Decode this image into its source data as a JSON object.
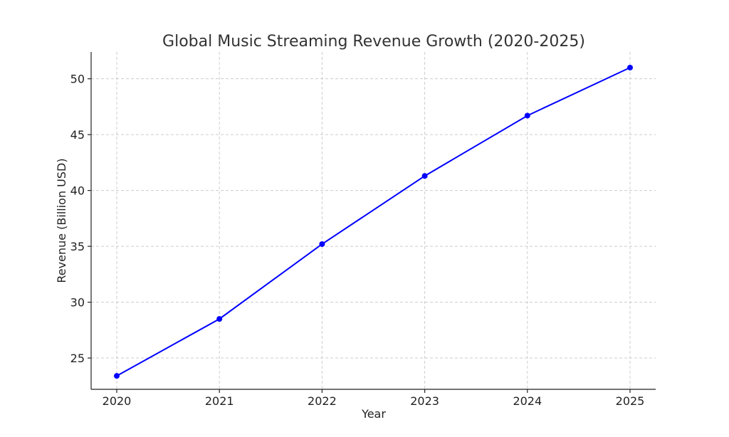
{
  "chart_data": {
    "type": "line",
    "title": "Global Music Streaming Revenue Growth (2020-2025)",
    "xlabel": "Year",
    "ylabel": "Revenue (Billion USD)",
    "x": [
      "2020",
      "2021",
      "2022",
      "2023",
      "2024",
      "2025"
    ],
    "series": [
      {
        "values": [
          23.4,
          28.5,
          35.2,
          41.3,
          46.7,
          51.0
        ],
        "color": "#0000ff",
        "marker": "circle"
      }
    ],
    "yticks": [
      25,
      30,
      35,
      40,
      45,
      50
    ],
    "ylim": [
      22.2,
      52.4
    ],
    "grid": true,
    "legend": "none"
  }
}
